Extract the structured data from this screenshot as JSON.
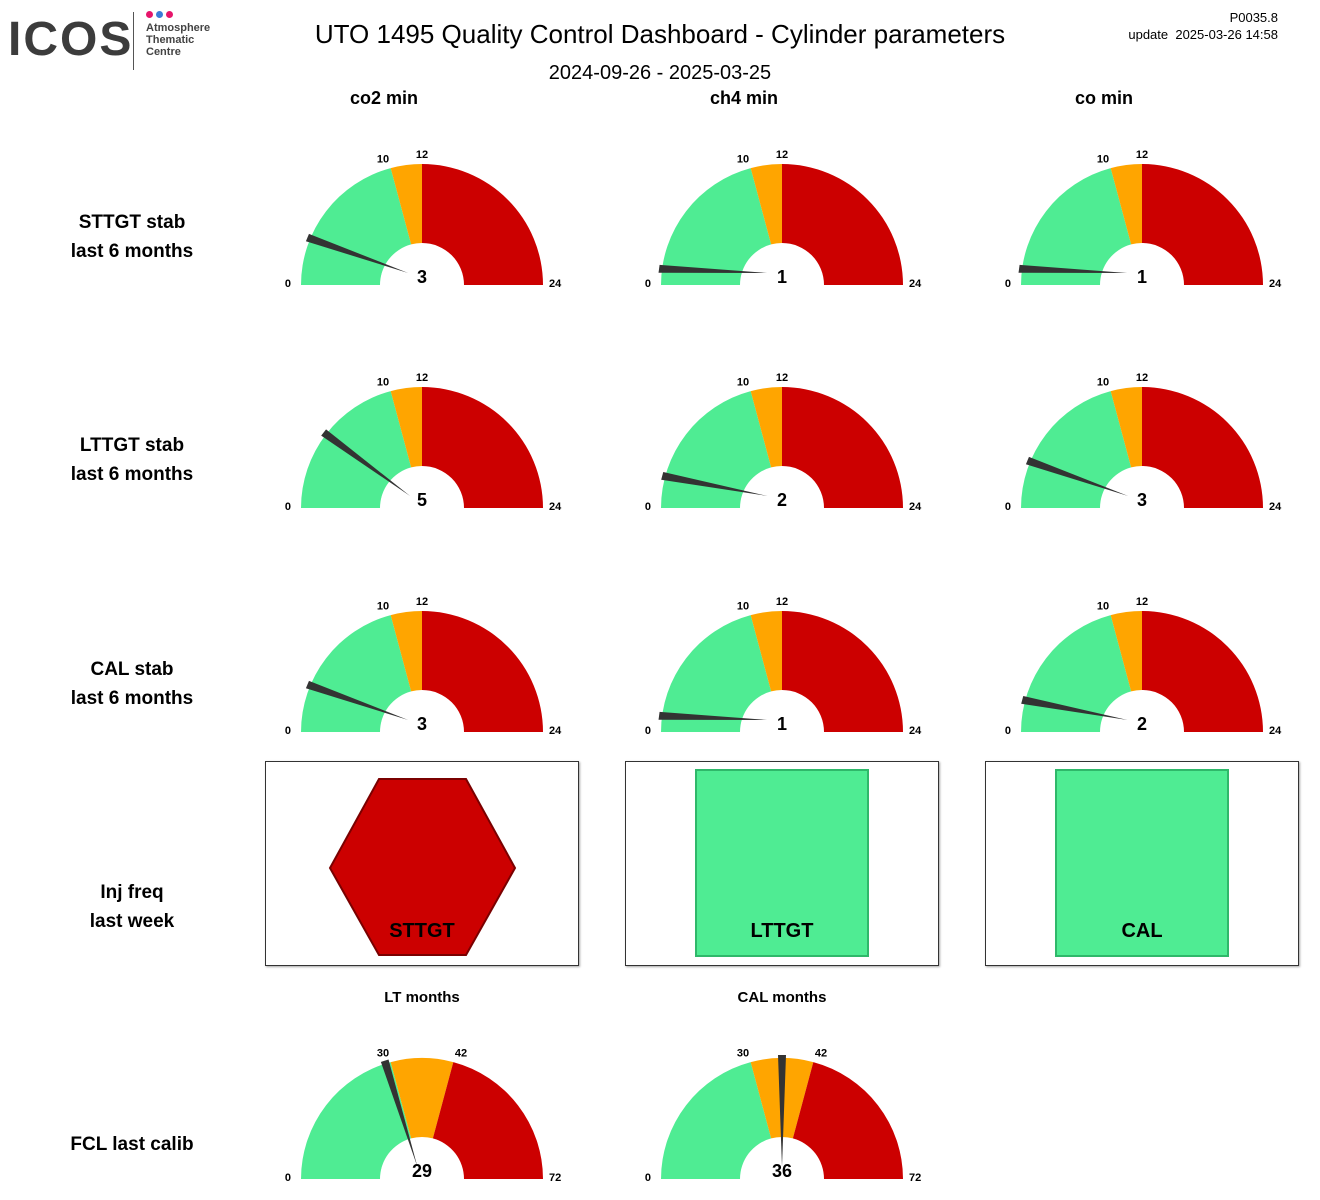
{
  "logo": {
    "word": "ICOS",
    "sub_lines": [
      "Atmosphere",
      "Thematic",
      "Centre"
    ],
    "dot_colors": [
      "#e6156b",
      "#3b7dd8",
      "#e6156b"
    ]
  },
  "header": {
    "title": "UTO 1495 Quality Control Dashboard - Cylinder parameters",
    "date_range": "2024-09-26 - 2025-03-25",
    "version": "P0035.8",
    "update": "update  2025-03-26 14:58"
  },
  "colors": {
    "green": "#4fec93",
    "orange": "#ffa500",
    "red": "#cc0000",
    "needle": "#333333"
  },
  "columns": [
    "co2 min",
    "ch4 min",
    "co min"
  ],
  "rows": [
    {
      "label_line1": "STTGT stab",
      "label_line2": "last 6 months"
    },
    {
      "label_line1": "LTTGT stab",
      "label_line2": "last 6 months"
    },
    {
      "label_line1": "CAL stab",
      "label_line2": "last 6 months"
    },
    {
      "label_line1": "Inj freq",
      "label_line2": "last week"
    },
    {
      "label_line1": "FCL last calib",
      "label_line2": ""
    }
  ],
  "gauge_rows": [
    {
      "row": "STTGT stab",
      "gauges": [
        {
          "column": "co2 min",
          "value": 3,
          "min": 0,
          "max": 24,
          "green_to": 10,
          "orange_to": 12
        },
        {
          "column": "ch4 min",
          "value": 1,
          "min": 0,
          "max": 24,
          "green_to": 10,
          "orange_to": 12
        },
        {
          "column": "co min",
          "value": 1,
          "min": 0,
          "max": 24,
          "green_to": 10,
          "orange_to": 12
        }
      ]
    },
    {
      "row": "LTTGT stab",
      "gauges": [
        {
          "column": "co2 min",
          "value": 5,
          "min": 0,
          "max": 24,
          "green_to": 10,
          "orange_to": 12
        },
        {
          "column": "ch4 min",
          "value": 2,
          "min": 0,
          "max": 24,
          "green_to": 10,
          "orange_to": 12
        },
        {
          "column": "co min",
          "value": 3,
          "min": 0,
          "max": 24,
          "green_to": 10,
          "orange_to": 12
        }
      ]
    },
    {
      "row": "CAL stab",
      "gauges": [
        {
          "column": "co2 min",
          "value": 3,
          "min": 0,
          "max": 24,
          "green_to": 10,
          "orange_to": 12
        },
        {
          "column": "ch4 min",
          "value": 1,
          "min": 0,
          "max": 24,
          "green_to": 10,
          "orange_to": 12
        },
        {
          "column": "co min",
          "value": 2,
          "min": 0,
          "max": 24,
          "green_to": 10,
          "orange_to": 12
        }
      ]
    }
  ],
  "inj_freq": [
    {
      "label": "STTGT",
      "shape": "hexagon",
      "status": "red"
    },
    {
      "label": "LTTGT",
      "shape": "square",
      "status": "green"
    },
    {
      "label": "CAL",
      "shape": "square",
      "status": "green"
    }
  ],
  "fcl_gauges": [
    {
      "title": "LT months",
      "value": 29,
      "min": 0,
      "max": 72,
      "green_to": 30,
      "orange_to": 42
    },
    {
      "title": "CAL months",
      "value": 36,
      "min": 0,
      "max": 72,
      "green_to": 30,
      "orange_to": 42
    }
  ]
}
